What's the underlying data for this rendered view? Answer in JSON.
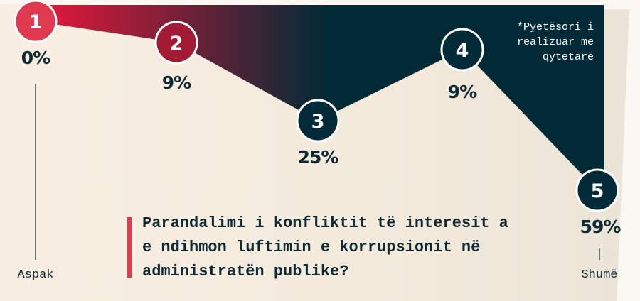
{
  "chart_data": {
    "type": "line",
    "categories": [
      "1",
      "2",
      "3",
      "4",
      "5"
    ],
    "values": [
      0,
      9,
      25,
      9,
      59
    ],
    "value_labels": [
      "0%",
      "9%",
      "25%",
      "9%",
      "59%"
    ],
    "xlabel_min": "Aspak",
    "xlabel_max": "Shumë",
    "title": "Parandalimi i konfliktit të interesit a e ndihmon luftimin e korrupsionit në administratën publike?",
    "title_lines": [
      "Parandalimi i konfliktit të interesit a",
      "e ndihmon luftimin e korrupsionit në",
      "administratën publike?"
    ],
    "note_lines": [
      "*Pyetësori i",
      "realizuar me",
      "qytetarë"
    ],
    "colors": {
      "gradient_start": "#e8173a",
      "gradient_end": "#022a36",
      "point1": "#e03a50",
      "point2": "#a31a35",
      "dark": "#032a37",
      "accent_bar": "#e0394f"
    }
  }
}
